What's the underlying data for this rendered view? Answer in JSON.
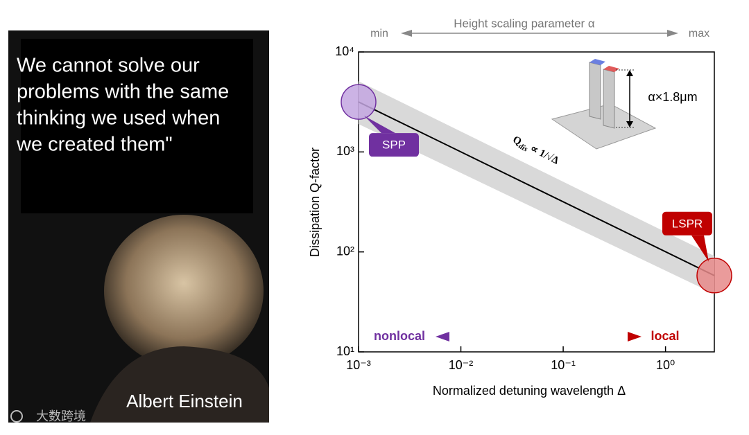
{
  "poster": {
    "quote_lines": [
      "We cannot solve our",
      "problems with the same",
      "thinking we used when",
      "we created them\""
    ],
    "name": "Albert Einstein"
  },
  "watermark": "大数跨境",
  "chart_data": {
    "type": "line",
    "xlabel": "Normalized detuning wavelength Δ",
    "ylabel": "Dissipation Q-factor",
    "xscale": "log",
    "yscale": "log",
    "xlim": [
      0.001,
      3
    ],
    "ylim": [
      10,
      10000
    ],
    "xticks": [
      {
        "value": 0.001,
        "label": "10⁻³"
      },
      {
        "value": 0.01,
        "label": "10⁻²"
      },
      {
        "value": 0.1,
        "label": "10⁻¹"
      },
      {
        "value": 1,
        "label": "10⁰"
      }
    ],
    "yticks": [
      {
        "value": 10,
        "label": "10¹"
      },
      {
        "value": 100,
        "label": "10²"
      },
      {
        "value": 1000,
        "label": "10³"
      },
      {
        "value": 10000,
        "label": "10⁴"
      }
    ],
    "x": [
      0.001,
      3
    ],
    "series": [
      {
        "color": "#000000",
        "values": [
          3162,
          58
        ]
      }
    ],
    "band": {
      "color": "#d9d9d9",
      "upper": [
        5100,
        91
      ],
      "lower": [
        1900,
        38
      ]
    },
    "points": [
      {
        "label": "SPP",
        "x": 0.001,
        "y": 3162,
        "color": "#c3a6e0",
        "label_color": "#7030a0"
      },
      {
        "label": "LSPR",
        "x": 3,
        "y": 58,
        "color": "#e68a8a",
        "label_color": "#c00000"
      }
    ],
    "top_axis": {
      "title": "Height scaling parameter α",
      "min": "min",
      "max": "max"
    },
    "gradient_labels": {
      "left": "nonlocal",
      "right": "local"
    },
    "formula": {
      "q": "Q",
      "sub": "dis",
      "rest": " ∝ 1/√Δ"
    },
    "dimension": "α×1.8μm"
  }
}
